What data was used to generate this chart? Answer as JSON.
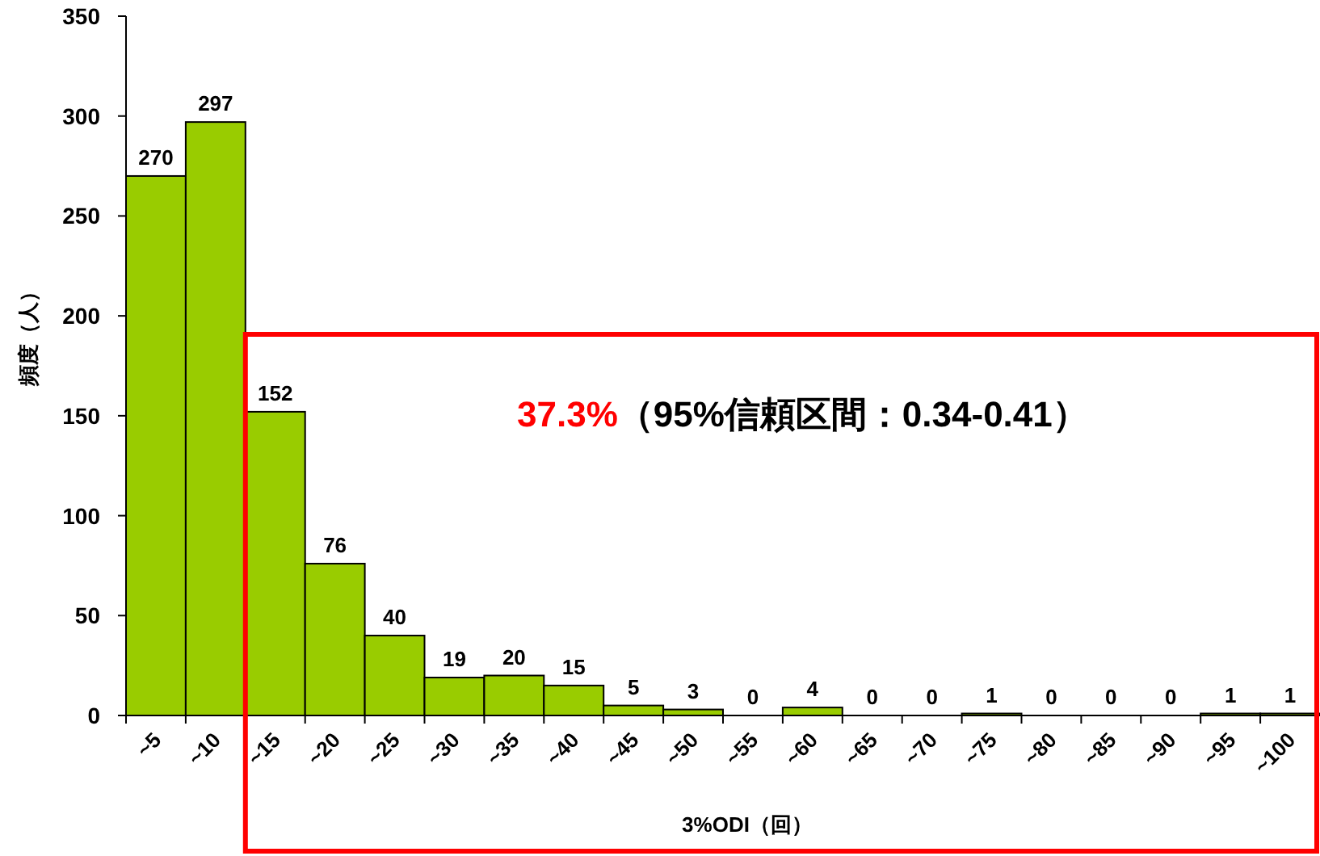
{
  "chart_data": {
    "type": "bar",
    "xlabel": "3%ODI（回）",
    "ylabel": "頻度（人）",
    "categories": [
      "~5",
      "~10",
      "~15",
      "~20",
      "~25",
      "~30",
      "~35",
      "~40",
      "~45",
      "~50",
      "~55",
      "~60",
      "~65",
      "~70",
      "~75",
      "~80",
      "~85",
      "~90",
      "~95",
      "~100"
    ],
    "values": [
      270,
      297,
      152,
      76,
      40,
      19,
      20,
      15,
      5,
      3,
      0,
      4,
      0,
      0,
      1,
      0,
      0,
      0,
      1,
      1
    ],
    "color": "#99cc00",
    "data_labels": true,
    "ylim": [
      0,
      350
    ],
    "yticks": [
      0,
      50,
      100,
      150,
      200,
      250,
      300,
      350
    ],
    "grid": false,
    "annotations": [
      "37.3%",
      "（95%信頼区間：0.34-0.41）"
    ]
  }
}
